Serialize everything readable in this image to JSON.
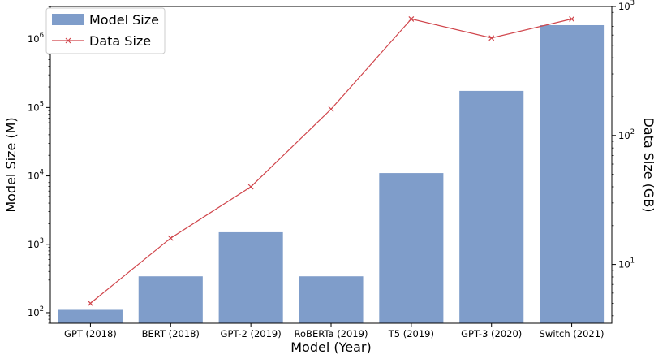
{
  "chart_data": {
    "type": "bar",
    "categories": [
      "GPT (2018)",
      "BERT (2018)",
      "GPT-2 (2019)",
      "RoBERTa (2019)",
      "T5 (2019)",
      "GPT-3 (2020)",
      "Switch (2021)"
    ],
    "series": [
      {
        "name": "Model Size",
        "type": "bar",
        "axis": "left",
        "color": "#7f9dca",
        "values": [
          110,
          340,
          1500,
          340,
          11000,
          175000,
          1600000
        ]
      },
      {
        "name": "Data Size",
        "type": "line",
        "axis": "right",
        "color": "#d0454b",
        "marker": "x",
        "values": [
          5,
          16,
          40,
          160,
          800,
          570,
          800
        ]
      }
    ],
    "xlabel": "Model (Year)",
    "ylabel": "Model Size (M)",
    "y2label": "Data Size (GB)",
    "yscale": "log",
    "y2scale": "log",
    "ylim": [
      70,
      3000000
    ],
    "y2lim": [
      3.5,
      1000
    ],
    "yticks": [
      {
        "value": 100,
        "mant": "10",
        "exp": "2"
      },
      {
        "value": 1000,
        "mant": "10",
        "exp": "3"
      },
      {
        "value": 10000,
        "mant": "10",
        "exp": "4"
      },
      {
        "value": 100000,
        "mant": "10",
        "exp": "5"
      },
      {
        "value": 1000000,
        "mant": "10",
        "exp": "6"
      }
    ],
    "y2ticks": [
      {
        "value": 10,
        "mant": "10",
        "exp": "1"
      },
      {
        "value": 100,
        "mant": "10",
        "exp": "2"
      },
      {
        "value": 1000,
        "mant": "10",
        "exp": "3"
      }
    ],
    "legend": {
      "position": "top-left",
      "entries": [
        "Model Size",
        "Data Size"
      ]
    },
    "grid": false
  }
}
